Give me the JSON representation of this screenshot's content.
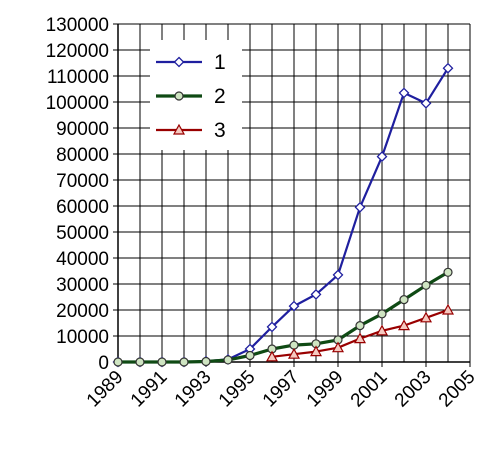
{
  "chart_data": {
    "type": "line",
    "title": "",
    "xlabel": "",
    "ylabel": "",
    "xlim": [
      1989,
      2005
    ],
    "ylim": [
      0,
      130000
    ],
    "grid": true,
    "legend_position": "top-left",
    "x_tick_labels": [
      "1989",
      "1991",
      "1993",
      "1995",
      "1997",
      "1999",
      "2001",
      "2003",
      "2005"
    ],
    "y_tick_labels": [
      "0",
      "10000",
      "20000",
      "30000",
      "40000",
      "50000",
      "60000",
      "70000",
      "80000",
      "90000",
      "100000",
      "110000",
      "120000",
      "130000"
    ],
    "series": [
      {
        "name": "1",
        "color": "#1f1f9f",
        "marker": "diamond",
        "x": [
          1989,
          1990,
          1991,
          1992,
          1993,
          1994,
          1995,
          1996,
          1997,
          1998,
          1999,
          2000,
          2001,
          2002,
          2003,
          2004
        ],
        "values": [
          0,
          0,
          0,
          0,
          300,
          1000,
          5000,
          13500,
          21500,
          26000,
          33500,
          59500,
          79000,
          103500,
          99500,
          113000
        ]
      },
      {
        "name": "2",
        "color": "#0f4a14",
        "marker": "circle",
        "x": [
          1989,
          1990,
          1991,
          1992,
          1993,
          1994,
          1995,
          1996,
          1997,
          1998,
          1999,
          2000,
          2001,
          2002,
          2003,
          2004
        ],
        "values": [
          0,
          0,
          0,
          0,
          200,
          800,
          2500,
          5000,
          6500,
          7000,
          8500,
          14000,
          18500,
          24000,
          29500,
          34500
        ]
      },
      {
        "name": "3",
        "color": "#990000",
        "marker": "triangle",
        "x": [
          1996,
          1997,
          1998,
          1999,
          2000,
          2001,
          2002,
          2003,
          2004
        ],
        "values": [
          2000,
          3000,
          4000,
          5500,
          9000,
          12000,
          14000,
          17000,
          20000
        ]
      }
    ]
  }
}
